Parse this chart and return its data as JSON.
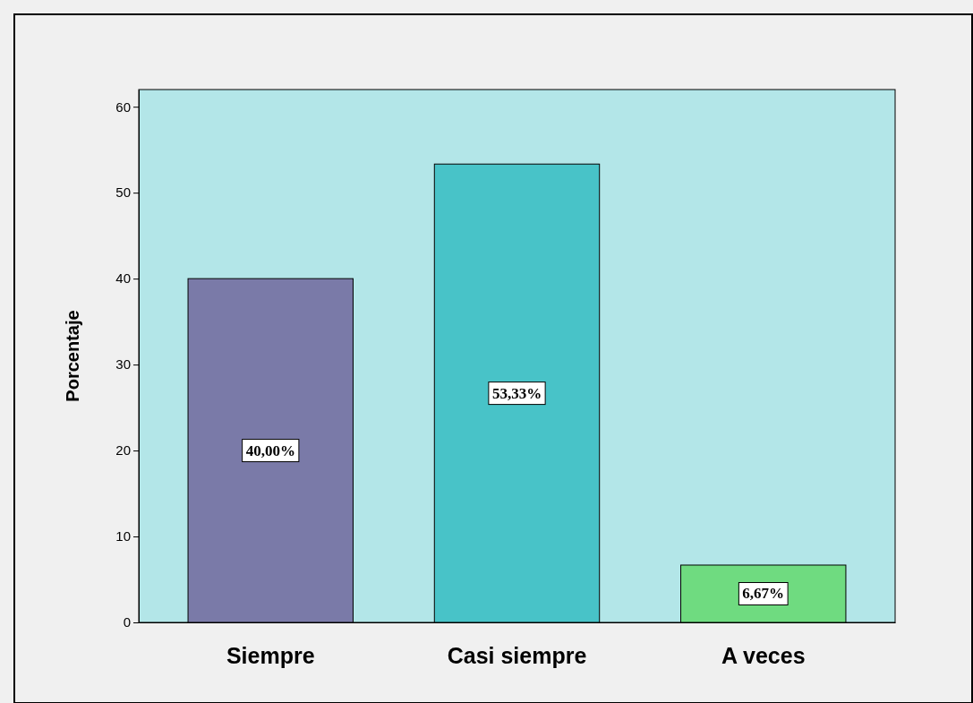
{
  "chart_data": {
    "type": "bar",
    "ylabel": "Porcentaje",
    "categories": [
      "Siempre",
      "Casi siempre",
      "A veces"
    ],
    "values": [
      40,
      53.33,
      6.67
    ],
    "colors": [
      "#7a7aa8",
      "#48c3c8",
      "#6fdb80"
    ],
    "value_labels": [
      "40,00%",
      "53,33%",
      "6,67%"
    ],
    "ylim": [
      0,
      62
    ],
    "yticks": [
      0,
      10,
      20,
      30,
      40,
      50,
      60
    ],
    "grid": false
  }
}
